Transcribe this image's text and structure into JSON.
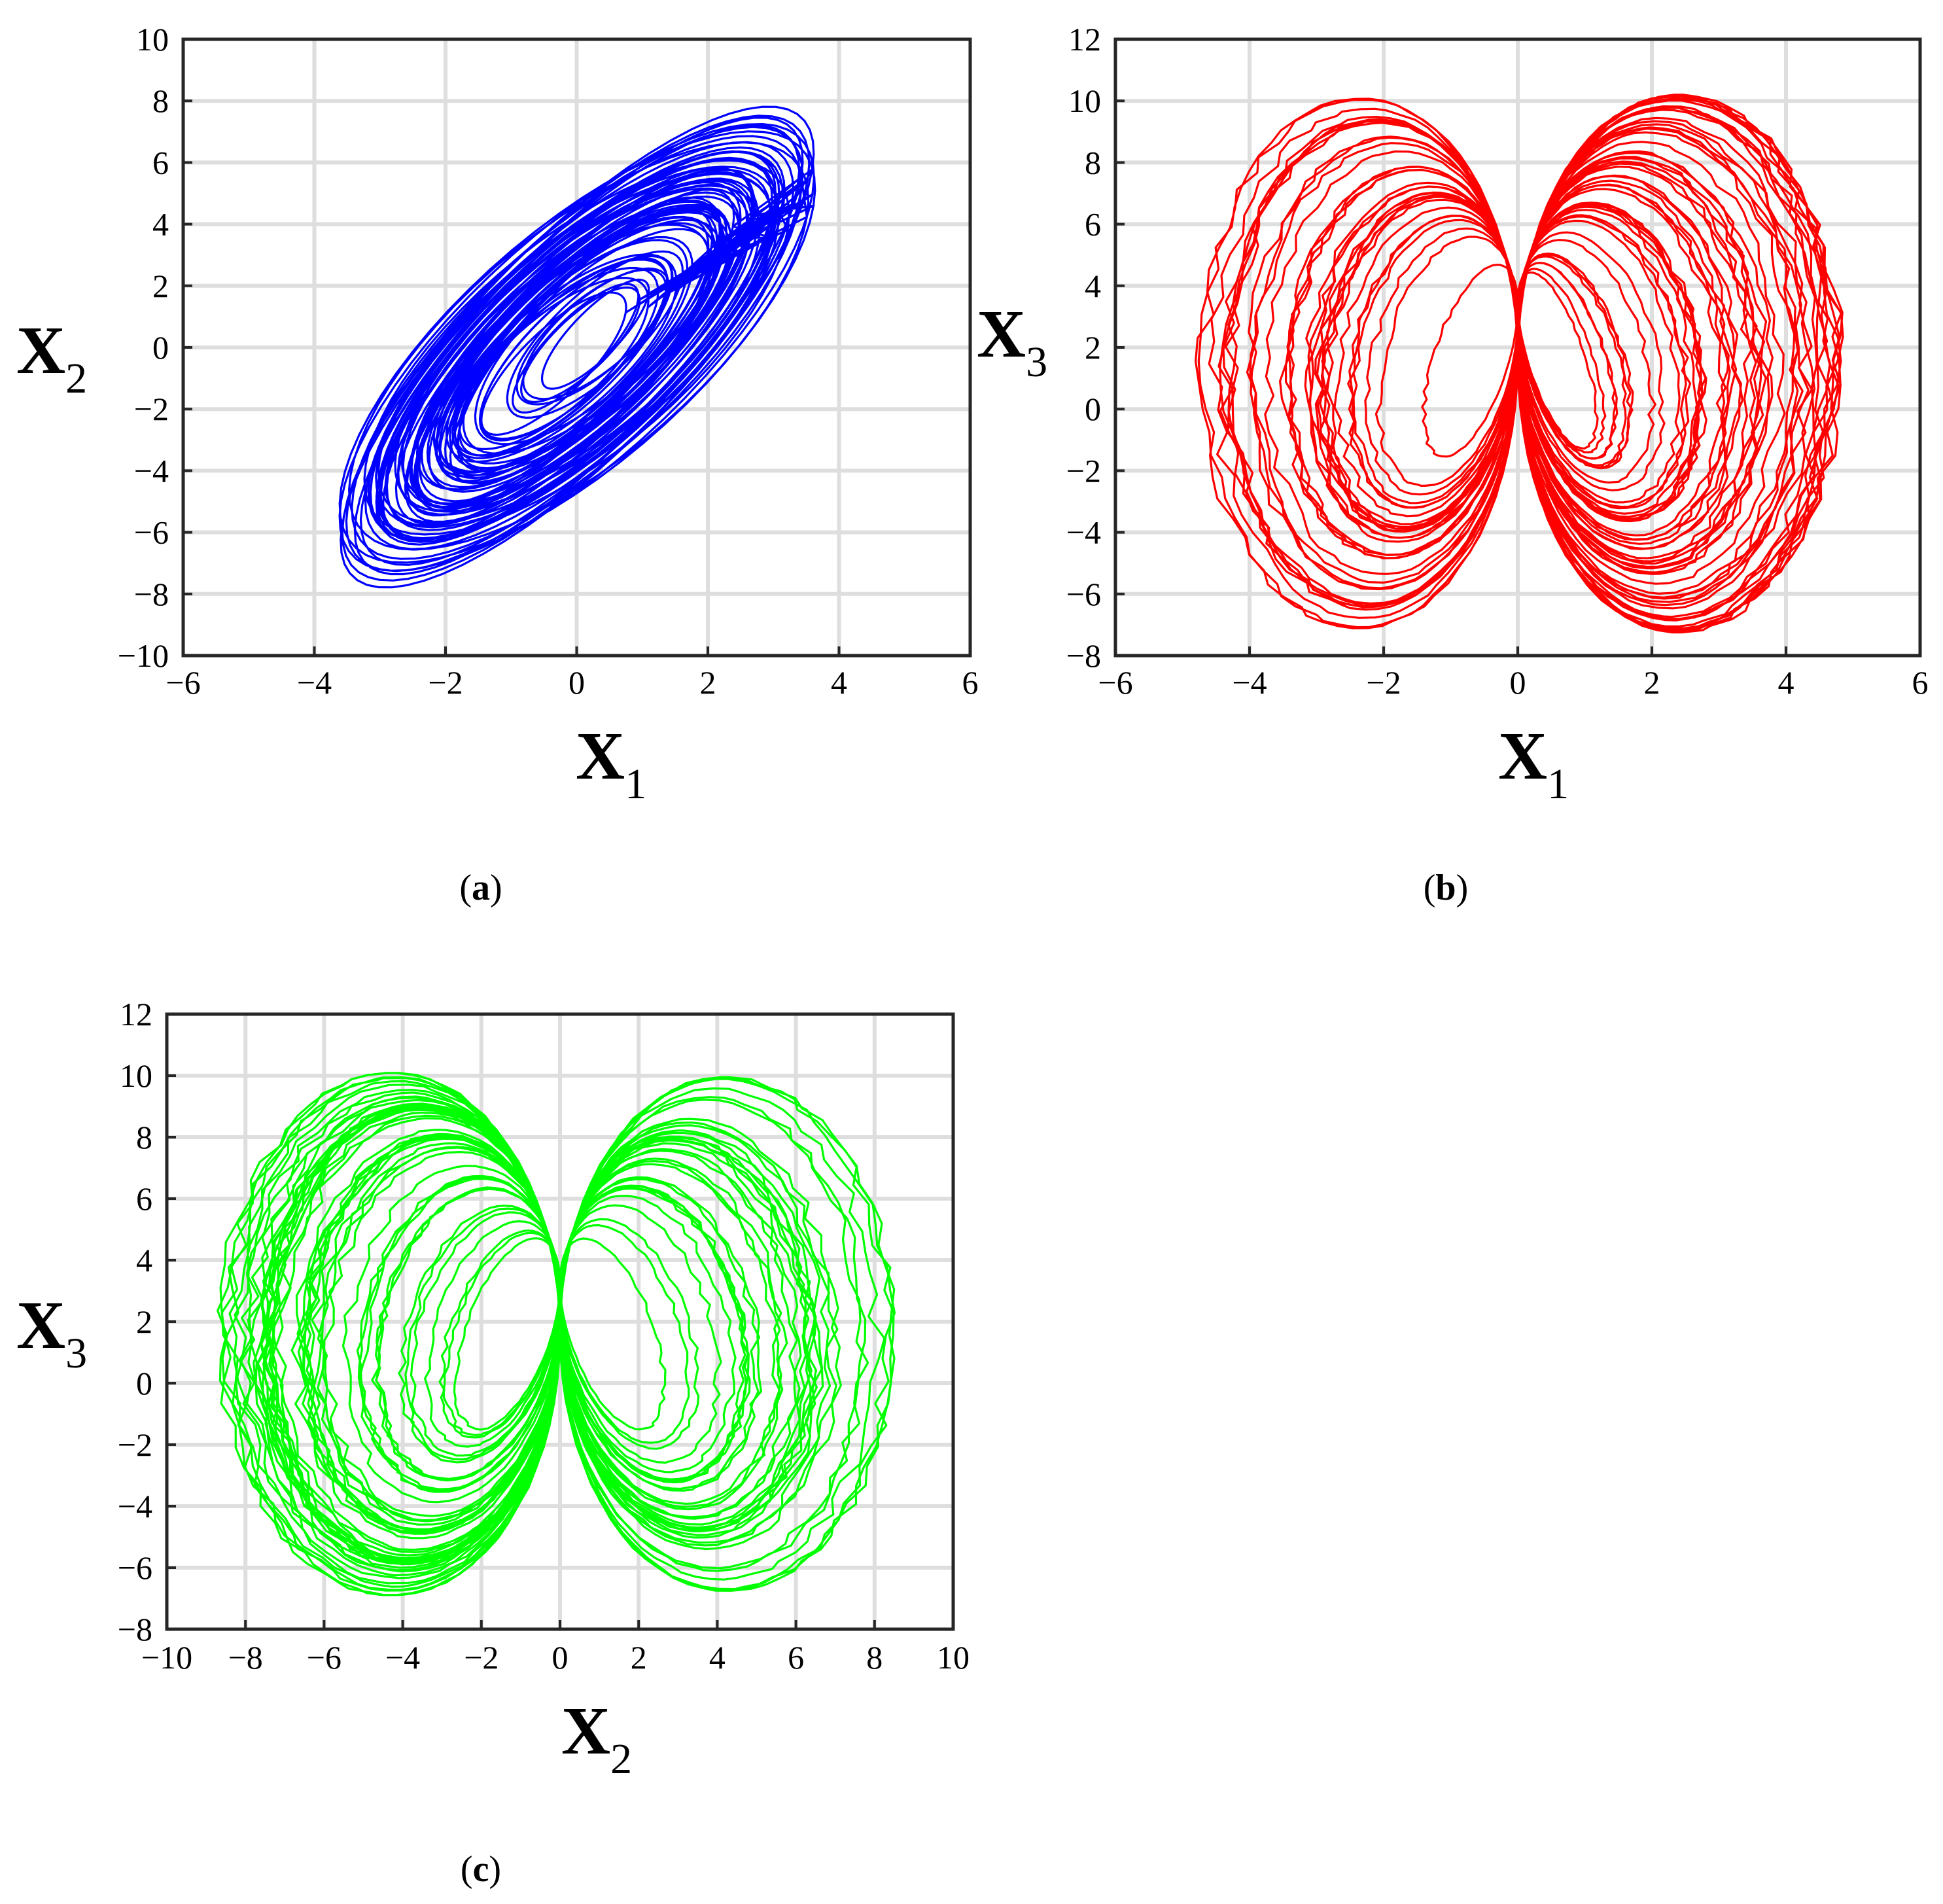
{
  "figure": {
    "captions": [
      "(a)",
      "(b)",
      "(c)"
    ]
  },
  "chart_data": [
    {
      "type": "line",
      "panel": "(a)",
      "description_id": "x1-x2-phase-portrait",
      "xlabel": "X",
      "xlabel_sub": "1",
      "ylabel": "X",
      "ylabel_sub": "2",
      "xlim": [
        -6,
        6
      ],
      "ylim": [
        -10,
        10
      ],
      "xticks": [
        -6,
        -4,
        -2,
        0,
        2,
        4,
        6
      ],
      "yticks": [
        -10,
        -8,
        -6,
        -4,
        -2,
        0,
        2,
        4,
        6,
        8,
        10
      ],
      "grid": true,
      "color": "#0000ff",
      "attractor": {
        "x_index": 0,
        "y_index": 1
      }
    },
    {
      "type": "line",
      "panel": "(b)",
      "description_id": "x1-x3-phase-portrait",
      "xlabel": "X",
      "xlabel_sub": "1",
      "ylabel": "X",
      "ylabel_sub": "3",
      "xlim": [
        -6,
        6
      ],
      "ylim": [
        -8,
        12
      ],
      "xticks": [
        -6,
        -4,
        -2,
        0,
        2,
        4,
        6
      ],
      "yticks": [
        -8,
        -6,
        -4,
        -2,
        0,
        2,
        4,
        6,
        8,
        10,
        12
      ],
      "grid": true,
      "color": "#ff0000",
      "attractor": {
        "x_index": 0,
        "y_index": 2
      }
    },
    {
      "type": "line",
      "panel": "(c)",
      "description_id": "x2-x3-phase-portrait",
      "xlabel": "X",
      "xlabel_sub": "2",
      "ylabel": "X",
      "ylabel_sub": "3",
      "xlim": [
        -10,
        10
      ],
      "ylim": [
        -8,
        12
      ],
      "xticks": [
        -10,
        -8,
        -6,
        -4,
        -2,
        0,
        2,
        4,
        6,
        8,
        10
      ],
      "yticks": [
        -8,
        -6,
        -4,
        -2,
        0,
        2,
        4,
        6,
        8,
        10,
        12
      ],
      "grid": true,
      "color": "#00ff00",
      "attractor": {
        "x_index": 1,
        "y_index": 2
      }
    }
  ]
}
